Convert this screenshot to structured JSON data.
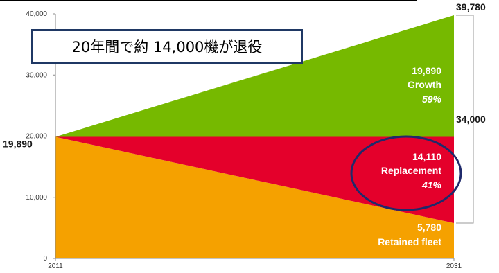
{
  "callout": "20年間で約 14,000機が退役",
  "colors": {
    "growth": "#76B900",
    "replacement": "#E4002B",
    "retained": "#F5A100",
    "ellipse": "#1f2a6b",
    "bracket": "#999999"
  },
  "chart_data": {
    "type": "area",
    "x": [
      "2011",
      "2031"
    ],
    "ylim": [
      0,
      40000
    ],
    "yticks": [
      "0",
      "10,000",
      "20,000",
      "30,000",
      "40,000"
    ],
    "ytick_values": [
      0,
      10000,
      20000,
      30000,
      40000
    ],
    "series": [
      {
        "name": "Retained fleet",
        "values": [
          19890,
          5780
        ]
      },
      {
        "name": "Replacement",
        "values": [
          0,
          14110
        ]
      },
      {
        "name": "Growth",
        "values": [
          0,
          19890
        ]
      }
    ],
    "labels": {
      "start_total": "19,890",
      "end_total": "39,780",
      "bracket_total": "34,000",
      "growth": {
        "value": "19,890",
        "name": "Growth",
        "pct": "59%"
      },
      "replacement": {
        "value": "14,110",
        "name": "Replacement",
        "pct": "41%"
      },
      "retained": {
        "value": "5,780",
        "name": "Retained fleet"
      }
    }
  }
}
